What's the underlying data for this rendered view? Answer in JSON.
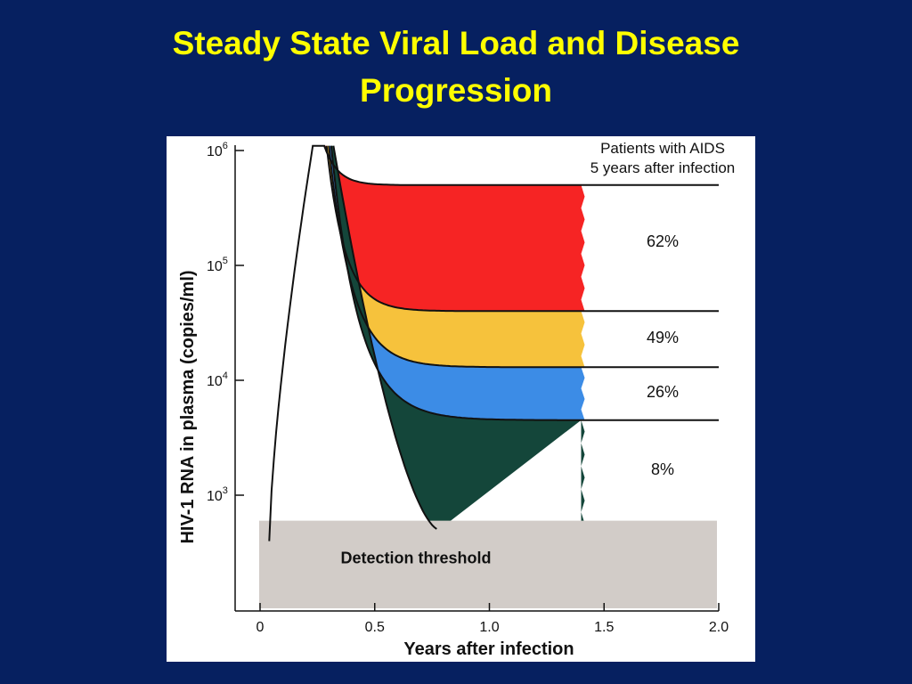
{
  "slide": {
    "title_line1": "Steady State Viral Load and Disease",
    "title_line2": "Progression"
  },
  "colors": {
    "background": "#062060",
    "title": "#FFFF00",
    "red": "#F62424",
    "yellow": "#F6C23C",
    "blue": "#3C8CE6",
    "green": "#14463A",
    "threshold": "#D2CCC8"
  },
  "chart_data": {
    "type": "area",
    "title": "",
    "xlabel": "Years after infection",
    "ylabel": "HIV-1 RNA in plasma (copies/ml)",
    "x_ticks": [
      "0",
      "0.5",
      "1.0",
      "1.5",
      "2.0"
    ],
    "xlim": [
      0,
      2.0
    ],
    "y_scale": "log",
    "ylim": [
      100,
      1200000
    ],
    "y_ticks": [
      {
        "base": "10",
        "exp": "3",
        "value": 1000
      },
      {
        "base": "10",
        "exp": "4",
        "value": 10000
      },
      {
        "base": "10",
        "exp": "5",
        "value": 100000
      },
      {
        "base": "10",
        "exp": "6",
        "value": 1000000
      }
    ],
    "legend_header": [
      "Patients with AIDS",
      "5 years after infection"
    ],
    "peak": {
      "x": 0.23,
      "y": 1100000
    },
    "series": [
      {
        "set_point": 500000,
        "label": "62%",
        "color": "red"
      },
      {
        "set_point": 40000,
        "label": "49%",
        "color": "yellow"
      },
      {
        "set_point": 13000,
        "label": "26%",
        "color": "blue"
      },
      {
        "set_point": 4500,
        "label": "8%",
        "color": "green"
      }
    ],
    "bottom_curve_min": 500,
    "fill_end_x": 1.4,
    "line_end_x": 2.0,
    "detection_threshold": {
      "label": "Detection threshold",
      "upper": 600
    }
  }
}
